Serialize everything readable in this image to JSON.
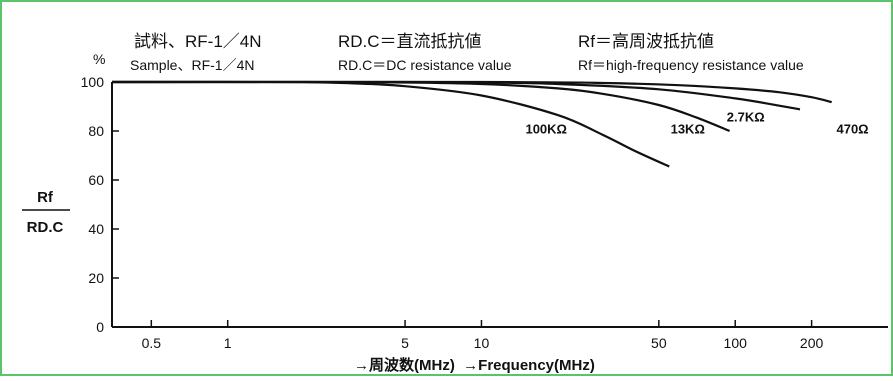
{
  "chart_data": {
    "type": "line",
    "header": {
      "jp": [
        "試料、RF-1／4N",
        "RD.C＝直流抵抗値",
        "Rf＝高周波抵抗値"
      ],
      "en": [
        "Sample、RF-1／4N",
        "RD.C＝DC resistance value",
        "Rf＝high-frequency resistance value"
      ]
    },
    "y_unit": "%",
    "ylabel_top": "Rf",
    "ylabel_bottom": "RD.C",
    "xlabel": "→周波数(MHz)  →Frequency(MHz)",
    "x_scale": "log",
    "xlim": [
      0.35,
      400
    ],
    "ylim": [
      0,
      100
    ],
    "x_ticks": [
      0.5,
      1,
      5,
      10,
      50,
      100,
      200
    ],
    "x_tick_labels": [
      "0.5",
      "1",
      "5",
      "10",
      "50",
      "100",
      "200"
    ],
    "y_ticks": [
      0,
      20,
      40,
      60,
      80,
      100
    ],
    "y_tick_labels": [
      "0",
      "20",
      "40",
      "60",
      "80",
      "100"
    ],
    "grid": false,
    "series": [
      {
        "name": "100KΩ",
        "x": [
          0.35,
          1,
          2,
          3,
          5,
          10,
          20,
          30,
          40,
          55
        ],
        "y": [
          100,
          100,
          99.9,
          99.5,
          98.3,
          94.5,
          86.5,
          78.5,
          72,
          65.5
        ]
      },
      {
        "name": "13KΩ",
        "x": [
          0.35,
          2,
          5,
          10,
          20,
          30,
          50,
          70,
          95
        ],
        "y": [
          100,
          100,
          99.8,
          99.2,
          97.4,
          95.2,
          90.6,
          85.6,
          80
        ]
      },
      {
        "name": "2.7KΩ",
        "x": [
          0.35,
          5,
          10,
          20,
          50,
          100,
          150,
          180
        ],
        "y": [
          100,
          100,
          99.8,
          99.2,
          97,
          93.3,
          90.3,
          88.8
        ]
      },
      {
        "name": "470Ω",
        "x": [
          0.35,
          10,
          30,
          60,
          100,
          150,
          200,
          240
        ],
        "y": [
          100,
          100,
          99.6,
          98.7,
          97.4,
          95.8,
          93.8,
          91.8
        ]
      }
    ],
    "curve_labels": [
      {
        "series": "100KΩ",
        "x": 18,
        "y": 81
      },
      {
        "series": "13KΩ",
        "x": 65,
        "y": 81
      },
      {
        "series": "2.7KΩ",
        "x": 110,
        "y": 86
      },
      {
        "series": "470Ω",
        "x": 290,
        "y": 81
      }
    ]
  }
}
